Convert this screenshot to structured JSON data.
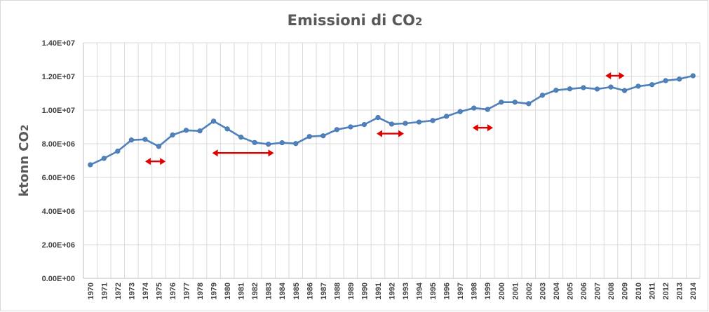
{
  "chart_data": {
    "type": "line",
    "title": "Emissioni di CO",
    "title_sub": "2",
    "ylabel": "ktonn CO",
    "ylabel_sub": "2",
    "xlabel": "",
    "ylim": [
      0,
      14000000
    ],
    "yticks": [
      "0.00E+00",
      "2.00E+06",
      "4.00E+06",
      "6.00E+06",
      "8.00E+06",
      "1.00E+07",
      "1.20E+07",
      "1.40E+07"
    ],
    "ytick_values": [
      0,
      2000000,
      4000000,
      6000000,
      8000000,
      10000000,
      12000000,
      14000000
    ],
    "grid": true,
    "line_color": "#4f81bd",
    "annotation_color": "#e00000",
    "categories": [
      "1970",
      "1971",
      "1972",
      "1973",
      "1974",
      "1975",
      "1976",
      "1977",
      "1978",
      "1979",
      "1980",
      "1981",
      "1982",
      "1983",
      "1984",
      "1985",
      "1986",
      "1987",
      "1988",
      "1989",
      "1990",
      "1991",
      "1992",
      "1993",
      "1994",
      "1995",
      "1996",
      "1997",
      "1998",
      "1999",
      "2000",
      "2001",
      "2002",
      "2003",
      "2004",
      "2005",
      "2006",
      "2007",
      "2008",
      "2009",
      "2010",
      "2011",
      "2012",
      "2013",
      "2014"
    ],
    "series": [
      {
        "values": [
          6750000,
          7130000,
          7560000,
          8220000,
          8260000,
          7840000,
          8520000,
          8800000,
          8760000,
          9340000,
          8880000,
          8390000,
          8070000,
          7970000,
          8060000,
          8010000,
          8430000,
          8470000,
          8840000,
          9000000,
          9140000,
          9560000,
          9170000,
          9210000,
          9290000,
          9380000,
          9630000,
          9910000,
          10120000,
          10040000,
          10470000,
          10470000,
          10380000,
          10880000,
          11180000,
          11260000,
          11330000,
          11250000,
          11370000,
          11160000,
          11420000,
          11510000,
          11750000,
          11840000,
          12040000
        ]
      }
    ],
    "annotations": [
      {
        "type": "double-arrow",
        "from": 1974,
        "to": 1975.5,
        "y": 6950000
      },
      {
        "type": "double-arrow",
        "from": 1978.9,
        "to": 1983.4,
        "y": 7450000
      },
      {
        "type": "double-arrow",
        "from": 1990.9,
        "to": 1992.9,
        "y": 8600000
      },
      {
        "type": "double-arrow",
        "from": 1997.9,
        "to": 1999.4,
        "y": 8950000
      },
      {
        "type": "double-arrow",
        "from": 2007.6,
        "to": 2009,
        "y": 12040000
      }
    ]
  }
}
